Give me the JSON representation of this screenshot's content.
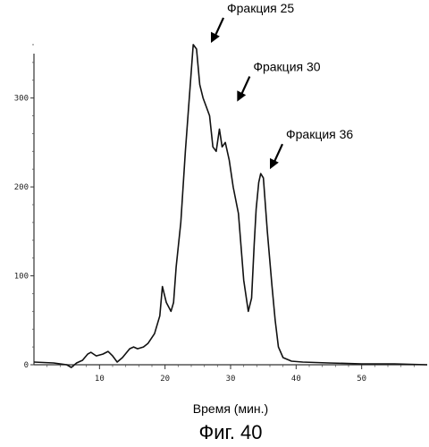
{
  "chart_data": {
    "type": "line",
    "title": "",
    "xlabel": "Время (мин.)",
    "ylabel": "",
    "xlim": [
      0,
      60
    ],
    "ylim": [
      0,
      370
    ],
    "xticks": [
      10,
      20,
      30,
      40,
      50
    ],
    "yticks": [
      0,
      100,
      200,
      300
    ],
    "xtick_labels": [
      "10",
      "20",
      "30",
      "40",
      "50"
    ],
    "ytick_labels": [
      "0",
      "100",
      "200",
      "300"
    ],
    "grid": false,
    "series": [
      {
        "x": [
          0,
          3,
          5,
          5.7,
          6.5,
          7.4,
          8.2,
          8.7,
          9.5,
          10.5,
          11.3,
          12,
          12.7,
          13.5,
          14.6,
          15.2,
          15.8,
          16.7,
          17.4,
          18.4,
          19.2,
          19.6,
          20.2,
          20.9,
          21.3,
          21.7,
          22.4,
          23.1,
          23.7,
          24.3,
          24.8,
          25.3,
          25.8,
          26.3,
          26.8,
          27.3,
          27.8,
          28.3,
          28.7,
          29.2,
          29.8,
          30.4,
          31.2,
          32,
          32.7,
          33.2,
          33.6,
          33.9,
          34.3,
          34.6,
          35,
          35.6,
          36.3,
          36.8,
          37.3,
          38,
          39.3,
          41,
          45,
          50,
          55,
          60
        ],
        "y": [
          3,
          2,
          0,
          -3,
          2,
          5,
          12,
          14,
          10,
          12,
          15,
          10,
          3,
          8,
          18,
          20,
          18,
          20,
          24,
          35,
          55,
          88,
          70,
          60,
          70,
          110,
          160,
          240,
          300,
          360,
          355,
          315,
          300,
          290,
          280,
          245,
          240,
          265,
          245,
          250,
          230,
          200,
          170,
          95,
          60,
          75,
          135,
          175,
          205,
          215,
          210,
          150,
          90,
          50,
          20,
          8,
          4,
          3,
          2,
          1,
          1,
          0
        ]
      }
    ],
    "annotations": [
      {
        "text": "Фракция 25",
        "x": 27,
        "y": 362
      },
      {
        "text": "Фракция 30",
        "x": 31,
        "y": 296
      },
      {
        "text": "Фракция 36",
        "x": 36,
        "y": 220
      }
    ]
  },
  "figure_caption": "Фиг. 40"
}
